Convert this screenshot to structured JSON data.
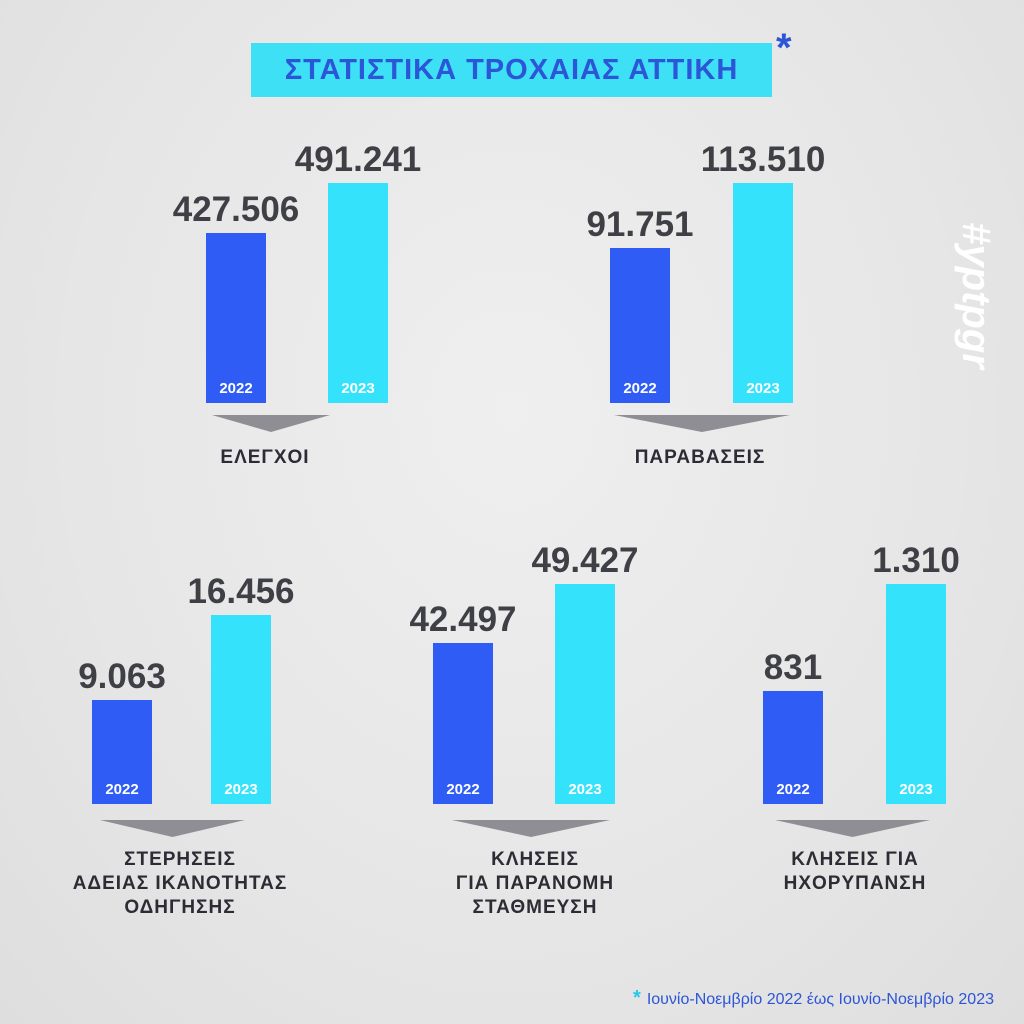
{
  "title": "ΣΤΑΤΙΣΤΙΚΑ ΤΡΟΧΑΙΑΣ ΑΤΤΙΚΗ",
  "title_marker": "*",
  "hashtag": "#yptpgr",
  "footnote": {
    "marker": "*",
    "text": "Ιουνίο-Νοεμβρίο 2022 έως Ιουνίο-Νοεμβρίο 2023"
  },
  "colors": {
    "title_bg": "#3ee0f6",
    "title_text": "#2c55d8",
    "bar_2022": "#2e5cf5",
    "bar_2023": "#35e2fb",
    "value_text": "#3f3f46",
    "pointer": "#8e8e94",
    "accent": "#25c8ea"
  },
  "chart_data": [
    {
      "type": "bar",
      "title": "ΕΛΕΓΧΟΙ",
      "categories": [
        "2022",
        "2023"
      ],
      "values": [
        427506,
        491241
      ],
      "value_labels": [
        "427.506",
        "491.241"
      ]
    },
    {
      "type": "bar",
      "title": "ΠΑΡΑΒΑΣΕΙΣ",
      "categories": [
        "2022",
        "2023"
      ],
      "values": [
        91751,
        113510
      ],
      "value_labels": [
        "91.751",
        "113.510"
      ]
    },
    {
      "type": "bar",
      "title": "ΣΤΕΡΗΣΕΙΣ\nΑΔΕΙΑΣ ΙΚΑΝΟΤΗΤΑΣ\nΟΔΗΓΗΣΗΣ",
      "categories": [
        "2022",
        "2023"
      ],
      "values": [
        9063,
        16456
      ],
      "value_labels": [
        "9.063",
        "16.456"
      ]
    },
    {
      "type": "bar",
      "title": "ΚΛΗΣΕΙΣ\nΓΙΑ ΠΑΡΑΝΟΜΗ\nΣΤΑΘΜΕΥΣΗ",
      "categories": [
        "2022",
        "2023"
      ],
      "values": [
        42497,
        49427
      ],
      "value_labels": [
        "42.497",
        "49.427"
      ]
    },
    {
      "type": "bar",
      "title": "ΚΛΗΣΕΙΣ ΓΙΑ\nΗΧΟΡΥΠΑΝΣΗ",
      "categories": [
        "2022",
        "2023"
      ],
      "values": [
        831,
        1310
      ],
      "value_labels": [
        "831",
        "1.310"
      ]
    }
  ]
}
